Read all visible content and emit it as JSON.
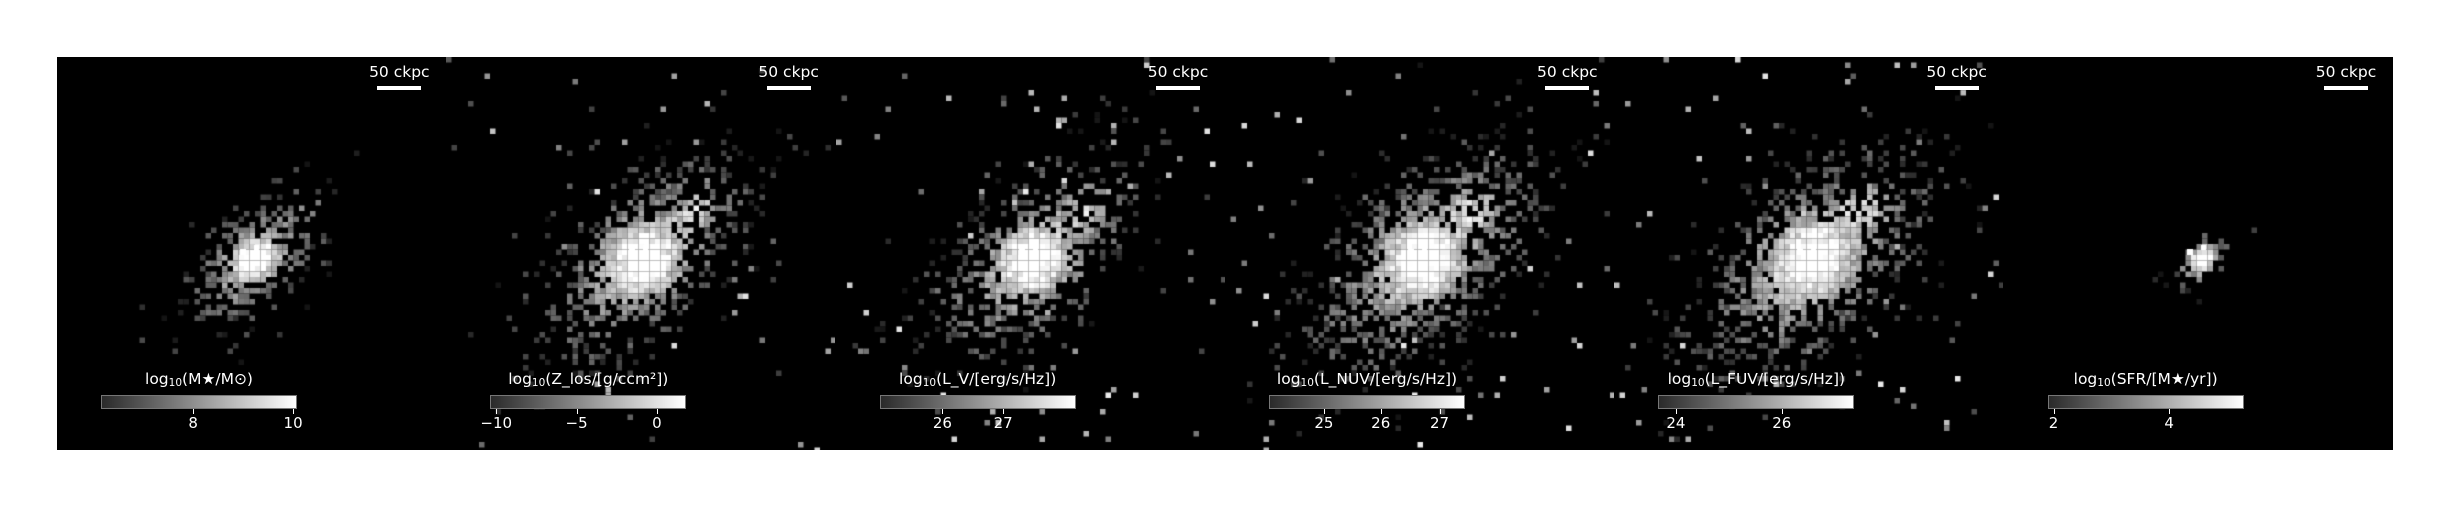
{
  "scale_bar_label": "50 ckpc",
  "panels": [
    {
      "id": "mass",
      "colorbar": {
        "pre": "log",
        "sub": "10",
        "post": "(M★/M⊙)",
        "ticks": [
          "8",
          "10"
        ],
        "tick_fracs": [
          0.47,
          0.98
        ]
      },
      "spread": 1.0
    },
    {
      "id": "zlos",
      "colorbar": {
        "pre": "log",
        "sub": "10",
        "post": "(Z_los/[g/ccm²])",
        "ticks": [
          "−10",
          "−5",
          "0"
        ],
        "tick_fracs": [
          0.03,
          0.44,
          0.85
        ]
      },
      "spread": 1.55
    },
    {
      "id": "lv",
      "colorbar": {
        "pre": "log",
        "sub": "10",
        "post": "(L_V/[erg/s/Hz])",
        "ticks": [
          "26",
          "27"
        ],
        "tick_fracs": [
          0.32,
          0.63
        ]
      },
      "spread": 1.5
    },
    {
      "id": "lnuv",
      "colorbar": {
        "pre": "log",
        "sub": "10",
        "post": "(L_NUV/[erg/s/Hz])",
        "ticks": [
          "25",
          "26",
          "27"
        ],
        "tick_fracs": [
          0.28,
          0.57,
          0.87
        ]
      },
      "spread": 1.7
    },
    {
      "id": "lfuv",
      "colorbar": {
        "pre": "log",
        "sub": "10",
        "post": "(L_FUV/[erg/s/Hz])",
        "ticks": [
          "24",
          "26"
        ],
        "tick_fracs": [
          0.09,
          0.63
        ]
      },
      "spread": 1.75
    },
    {
      "id": "sfr",
      "colorbar": {
        "pre": "log",
        "sub": "10",
        "post": "(SFR/[M★/yr])",
        "ticks": [
          "2",
          "4"
        ],
        "tick_fracs": [
          0.03,
          0.62
        ]
      },
      "spread": 0.45
    }
  ]
}
